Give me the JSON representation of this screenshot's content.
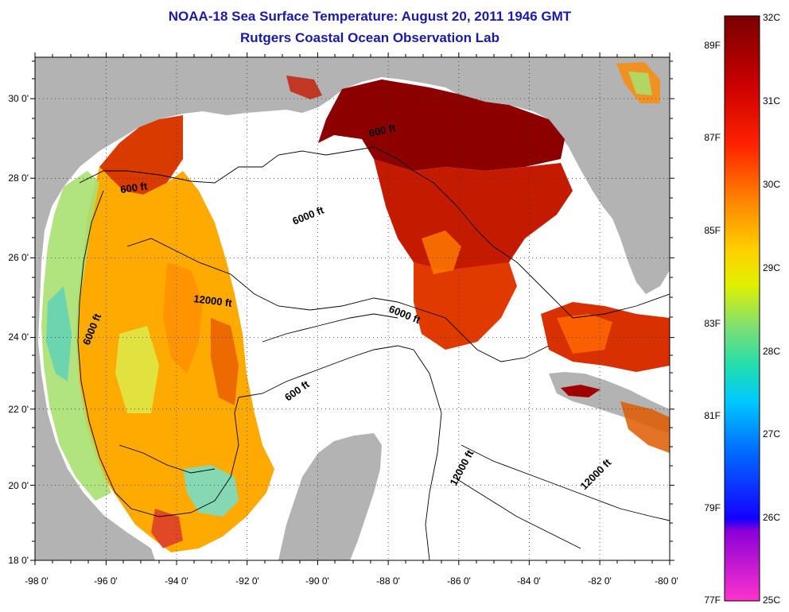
{
  "title": {
    "line1": "NOAA-18 Sea Surface Temperature:  August 20, 2011 1946 GMT",
    "line2": "Rutgers Coastal Ocean Observation Lab"
  },
  "map": {
    "x_ticks": [
      "-98 0'",
      "-96 0'",
      "-94 0'",
      "-92 0'",
      "-90 0'",
      "-88 0'",
      "-86 0'",
      "-84 0'",
      "-82 0'",
      "-80 0'"
    ],
    "y_ticks": [
      "30 0'",
      "28 0'",
      "26 0'",
      "24 0'",
      "22 0'",
      "20 0'",
      "18 0'"
    ],
    "contour_labels": [
      "600 ft",
      "600 ft",
      "600 ft",
      "6000 ft",
      "6000 ft",
      "6000 ft",
      "12000 ft",
      "12000 ft",
      "12000 ft"
    ],
    "colors": {
      "land": "#b3b3b3",
      "ocean_nodata": "#ffffff",
      "frame": "#000000"
    }
  },
  "colorbar": {
    "celsius": [
      "32C",
      "31C",
      "30C",
      "29C",
      "28C",
      "27C",
      "26C",
      "25C"
    ],
    "fahrenheit": [
      "89F",
      "87F",
      "85F",
      "83F",
      "81F",
      "79F",
      "77F"
    ],
    "stops": [
      "#7a0000",
      "#cc0000",
      "#ff3300",
      "#ff8800",
      "#ffcc00",
      "#e6f000",
      "#99e060",
      "#33ddaa",
      "#00c8ff",
      "#0066ff",
      "#1a00ff",
      "#8800dd",
      "#ff33cc"
    ]
  }
}
